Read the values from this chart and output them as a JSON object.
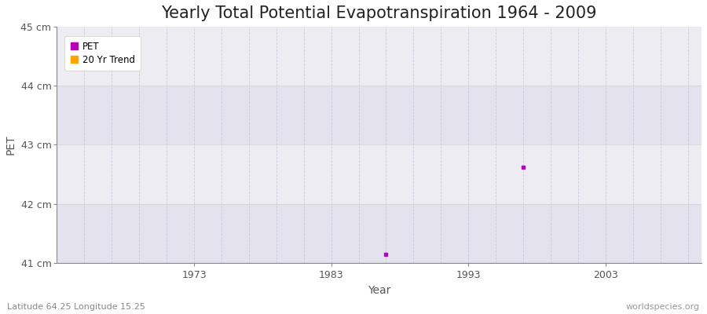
{
  "title": "Yearly Total Potential Evapotranspiration 1964 - 2009",
  "xlabel": "Year",
  "ylabel": "PET",
  "xlim": [
    1963,
    2010
  ],
  "ylim": [
    41.0,
    45.0
  ],
  "yticks": [
    41,
    42,
    43,
    44,
    45
  ],
  "ytick_labels": [
    "41 cm",
    "42 cm",
    "43 cm",
    "44 cm",
    "45 cm"
  ],
  "xticks": [
    1973,
    1983,
    1993,
    2003
  ],
  "xtick_labels": [
    "1973",
    "1983",
    "1993",
    "2003"
  ],
  "data_points": [
    {
      "year": 1987,
      "value": 41.15
    },
    {
      "year": 1997,
      "value": 42.62
    }
  ],
  "pet_color": "#bb00bb",
  "trend_color": "#ffa500",
  "fig_background": "#ffffff",
  "band_light": "#eeecf3",
  "band_dark": "#e4e2ec",
  "grid_v_color": "#c8c0d8",
  "grid_h_color": "#d0ccd8",
  "axis_color": "#555555",
  "tick_color": "#555555",
  "legend_pet_label": "PET",
  "legend_trend_label": "20 Yr Trend",
  "bottom_left_text": "Latitude 64.25 Longitude 15.25",
  "bottom_right_text": "worldspecies.org",
  "title_fontsize": 15,
  "axis_label_fontsize": 10,
  "tick_fontsize": 9,
  "annotation_fontsize": 8
}
